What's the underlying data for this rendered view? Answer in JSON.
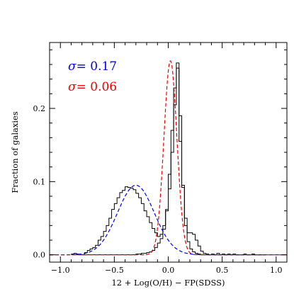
{
  "chart_data": {
    "type": "histogram",
    "xlabel": "12 + Log(O/H) − FP(SDSS)",
    "ylabel": "Fraction of galaxies",
    "xlim": [
      -1.1,
      1.1
    ],
    "ylim": [
      -0.01,
      0.29
    ],
    "xticks": [
      -1.0,
      -0.5,
      0.0,
      0.5,
      1.0
    ],
    "xtick_labels": [
      "−1.0",
      "−0.5",
      "0.0",
      "0.5",
      "1.0"
    ],
    "yticks": [
      0.0,
      0.1,
      0.2
    ],
    "ytick_labels": [
      "0.0",
      "0.1",
      "0.2"
    ],
    "grid": false,
    "annotations": [
      {
        "symbol": "σ",
        "text": "= 0.17",
        "color": "#0000ee"
      },
      {
        "symbol": "σ",
        "text": "= 0.06",
        "color": "#ee0000"
      }
    ],
    "bin_width": 0.025,
    "series": [
      {
        "kind": "step",
        "color": "#000000",
        "bin_start": -0.9,
        "values": [
          0.001,
          0.002,
          0.001,
          0.0,
          0.0,
          0.003,
          0.006,
          0.008,
          0.01,
          0.013,
          0.02,
          0.025,
          0.032,
          0.04,
          0.05,
          0.062,
          0.07,
          0.078,
          0.085,
          0.088,
          0.093,
          0.092,
          0.091,
          0.089,
          0.084,
          0.078,
          0.07,
          0.06,
          0.052,
          0.044,
          0.036,
          0.03,
          0.025,
          0.028,
          0.04,
          0.06,
          0.09,
          0.14,
          0.205,
          0.255,
          0.155,
          0.095,
          0.05,
          0.03,
          0.03,
          0.028,
          0.02,
          0.012,
          0.005,
          0.002,
          0.001,
          0.0,
          0.001,
          0.0,
          0.002,
          0.0,
          0.001,
          0.0,
          0.001,
          0.0,
          0.001,
          0.0,
          0.0,
          0.0,
          0.001,
          0.0,
          0.0,
          0.001,
          0.0,
          0.0,
          0.0,
          0.0
        ]
      },
      {
        "kind": "step",
        "color": "#000000",
        "bin_start": -0.9,
        "values": [
          0.0,
          0.0,
          0.0,
          0.0,
          0.0,
          0.0,
          0.0,
          0.0,
          0.0,
          0.0,
          0.0,
          0.0,
          0.0,
          0.0,
          0.0,
          0.0,
          0.0,
          0.0,
          0.0,
          0.0,
          0.0,
          0.0,
          0.0,
          0.0,
          0.001,
          0.001,
          0.002,
          0.002,
          0.003,
          0.004,
          0.006,
          0.01,
          0.016,
          0.022,
          0.035,
          0.062,
          0.11,
          0.17,
          0.228,
          0.262,
          0.19,
          0.092,
          0.04,
          0.018,
          0.008,
          0.004,
          0.002,
          0.001,
          0.0,
          0.0,
          0.0,
          0.0,
          0.0,
          0.0,
          0.0,
          0.0,
          0.0,
          0.0,
          0.0,
          0.0,
          0.0,
          0.0,
          0.0,
          0.0,
          0.0,
          0.0,
          0.0,
          0.0,
          0.0,
          0.0,
          0.0,
          0.0
        ]
      },
      {
        "kind": "gaussian",
        "color": "#0000ee",
        "dash": true,
        "amplitude": 0.095,
        "mean": -0.3,
        "sigma": 0.17
      },
      {
        "kind": "gaussian",
        "color": "#ee0000",
        "dash": true,
        "amplitude": 0.265,
        "mean": 0.02,
        "sigma": 0.06
      }
    ]
  }
}
